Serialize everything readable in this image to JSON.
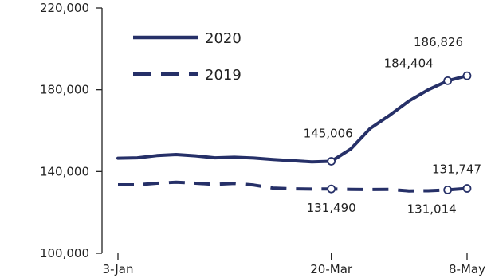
{
  "chart_data": {
    "type": "line",
    "title": "",
    "xlabel": "",
    "ylabel": "",
    "x_ticks": [
      "3-Jan",
      "20-Mar",
      "8-May"
    ],
    "x_range": [
      "3-Jan",
      "8-May"
    ],
    "ylim": [
      100000,
      220000
    ],
    "y_ticks": [
      {
        "value": 100000,
        "label": "100,000"
      },
      {
        "value": 140000,
        "label": "140,000"
      },
      {
        "value": 180000,
        "label": "180,000"
      },
      {
        "value": 220000,
        "label": "220,000"
      }
    ],
    "grid": false,
    "legend_position": "top-left",
    "series": [
      {
        "name": "2020",
        "color": "#263068",
        "dash": "solid",
        "points": [
          {
            "x": "3-Jan",
            "y": 146500
          },
          {
            "x": "10-Jan",
            "y": 146700
          },
          {
            "x": "17-Jan",
            "y": 147800
          },
          {
            "x": "24-Jan",
            "y": 148300
          },
          {
            "x": "31-Jan",
            "y": 147700
          },
          {
            "x": "7-Feb",
            "y": 146700
          },
          {
            "x": "14-Feb",
            "y": 147000
          },
          {
            "x": "21-Feb",
            "y": 146600
          },
          {
            "x": "28-Feb",
            "y": 145900
          },
          {
            "x": "6-Mar",
            "y": 145300
          },
          {
            "x": "13-Mar",
            "y": 144700
          },
          {
            "x": "20-Mar",
            "y": 145006,
            "label": "145,006"
          },
          {
            "x": "27-Mar",
            "y": 151000
          },
          {
            "x": "3-Apr",
            "y": 161000
          },
          {
            "x": "10-Apr",
            "y": 167500
          },
          {
            "x": "17-Apr",
            "y": 174500
          },
          {
            "x": "24-Apr",
            "y": 180000
          },
          {
            "x": "1-May",
            "y": 184404,
            "label": "184,404"
          },
          {
            "x": "8-May",
            "y": 186826,
            "label": "186,826"
          }
        ]
      },
      {
        "name": "2019",
        "color": "#263068",
        "dash": "dashed",
        "points": [
          {
            "x": "3-Jan",
            "y": 133500
          },
          {
            "x": "10-Jan",
            "y": 133500
          },
          {
            "x": "17-Jan",
            "y": 134300
          },
          {
            "x": "24-Jan",
            "y": 134800
          },
          {
            "x": "31-Jan",
            "y": 134300
          },
          {
            "x": "7-Feb",
            "y": 133700
          },
          {
            "x": "14-Feb",
            "y": 134200
          },
          {
            "x": "21-Feb",
            "y": 133400
          },
          {
            "x": "28-Feb",
            "y": 131900
          },
          {
            "x": "6-Mar",
            "y": 131500
          },
          {
            "x": "13-Mar",
            "y": 131400
          },
          {
            "x": "20-Mar",
            "y": 131490,
            "label": "131,490"
          },
          {
            "x": "27-Mar",
            "y": 131300
          },
          {
            "x": "3-Apr",
            "y": 131200
          },
          {
            "x": "10-Apr",
            "y": 131300
          },
          {
            "x": "17-Apr",
            "y": 130500
          },
          {
            "x": "24-Apr",
            "y": 130600
          },
          {
            "x": "1-May",
            "y": 131014,
            "label": "131,014"
          },
          {
            "x": "8-May",
            "y": 131747,
            "label": "131,747"
          }
        ]
      }
    ]
  }
}
